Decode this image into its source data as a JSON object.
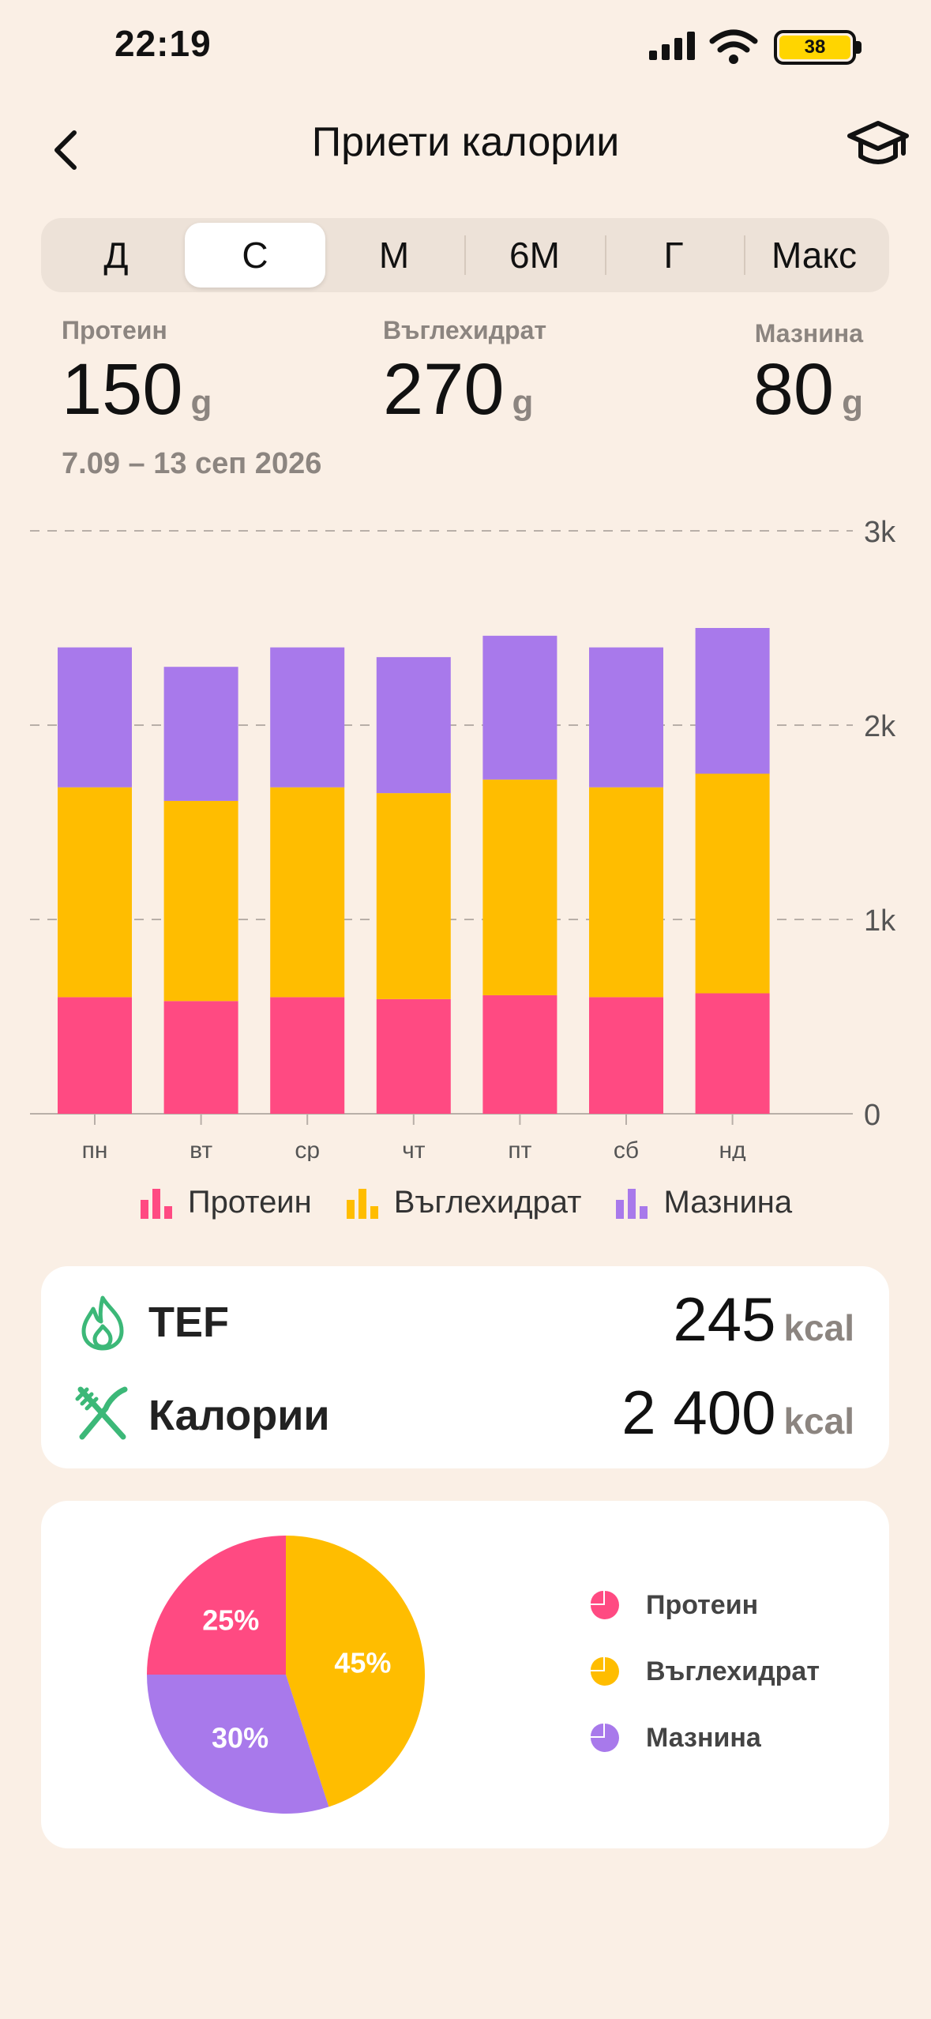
{
  "status": {
    "time": "22:19",
    "battery": "38"
  },
  "header": {
    "title": "Приети калории"
  },
  "tabs": [
    {
      "label": "Д",
      "active": false
    },
    {
      "label": "С",
      "active": true
    },
    {
      "label": "М",
      "active": false
    },
    {
      "label": "6М",
      "active": false
    },
    {
      "label": "Г",
      "active": false
    },
    {
      "label": "Макс",
      "active": false
    }
  ],
  "summary": {
    "protein": {
      "label": "Протеин",
      "value": "150",
      "unit": "g"
    },
    "carbs": {
      "label": "Въглехидрат",
      "value": "270",
      "unit": "g"
    },
    "fat": {
      "label": "Мазнина",
      "value": "80",
      "unit": "g"
    },
    "date_range": "7.09 – 13 сеп 2026"
  },
  "colors": {
    "protein": "#FF4A82",
    "carbs": "#FFBD00",
    "fat": "#A879EB",
    "accent": "#3CB878"
  },
  "chart_data": {
    "type": "bar",
    "stacked": true,
    "categories": [
      "пн",
      "вт",
      "ср",
      "чт",
      "пт",
      "сб",
      "нд"
    ],
    "series": [
      {
        "name": "Протеин",
        "values": [
          600,
          580,
          600,
          590,
          610,
          600,
          620
        ]
      },
      {
        "name": "Въглехидрат",
        "values": [
          1080,
          1030,
          1080,
          1060,
          1110,
          1080,
          1130
        ]
      },
      {
        "name": "Мазнина",
        "values": [
          720,
          690,
          720,
          700,
          740,
          720,
          750
        ]
      }
    ],
    "ylim": [
      0,
      3000
    ],
    "yticks": [
      "0",
      "1k",
      "2k",
      "3k"
    ],
    "grid": true,
    "legend": "bottom"
  },
  "legend": [
    {
      "label": "Протеин",
      "icon": "bar-chart-icon"
    },
    {
      "label": "Въглехидрат",
      "icon": "bar-chart-icon"
    },
    {
      "label": "Мазнина",
      "icon": "bar-chart-icon"
    }
  ],
  "energy": {
    "tef": {
      "label": "TEF",
      "value": "245",
      "unit": "kcal",
      "icon": "flame-icon"
    },
    "calories": {
      "label": "Калории",
      "value": "2 400",
      "unit": "kcal",
      "icon": "fork-knife-icon"
    }
  },
  "pie": {
    "slices": [
      {
        "name": "Протеин",
        "percent": 25,
        "label": "25%"
      },
      {
        "name": "Въглехидрат",
        "percent": 45,
        "label": "45%"
      },
      {
        "name": "Мазнина",
        "percent": 30,
        "label": "30%"
      }
    ],
    "legend": [
      "Протеин",
      "Въглехидрат",
      "Мазнина"
    ]
  }
}
